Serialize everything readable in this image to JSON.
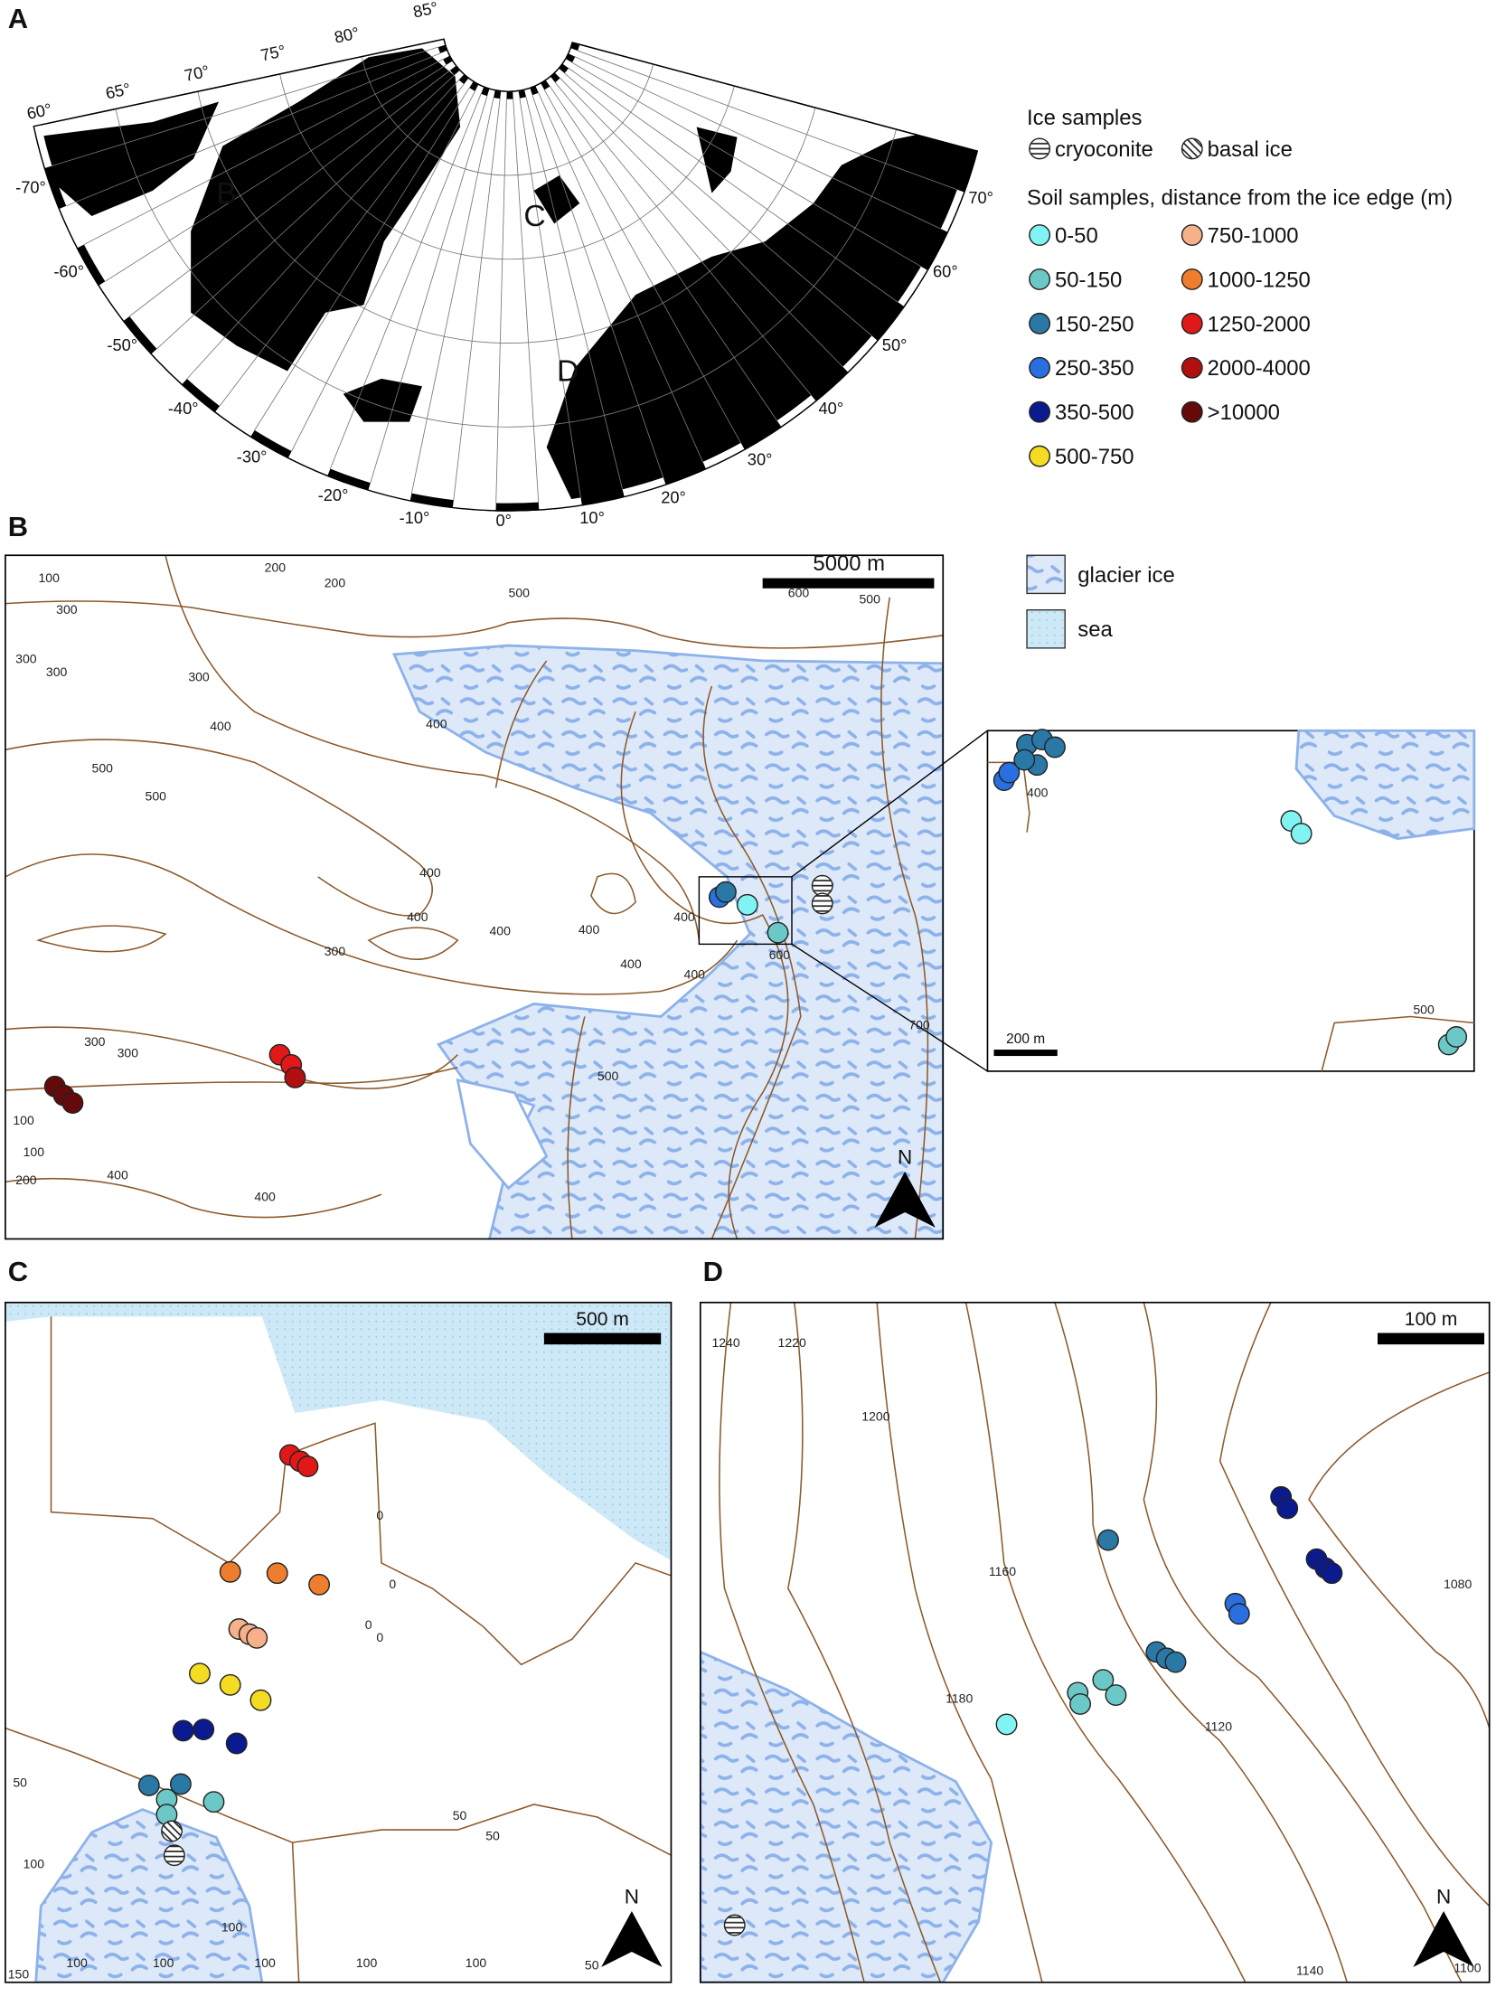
{
  "panel_labels": [
    "A",
    "B",
    "C",
    "D"
  ],
  "map_a": {
    "region_labels": [
      "B",
      "C",
      "D"
    ],
    "latitude_labels": [
      "60°",
      "65°",
      "70°",
      "75°",
      "80°",
      "85°"
    ],
    "longitude_labels": [
      "-70°",
      "-60°",
      "-50°",
      "-40°",
      "-30°",
      "-20°",
      "-10°",
      "0°",
      "10°",
      "20°",
      "30°",
      "40°",
      "50°",
      "60°",
      "70°"
    ]
  },
  "legend": {
    "ice_title": "Ice samples",
    "ice_types": [
      "cryoconite",
      "basal ice"
    ],
    "soil_title": "Soil samples, distance from the ice edge (m)",
    "soil_classes": [
      {
        "label": "0-50",
        "color": "#80f4f2"
      },
      {
        "label": "50-150",
        "color": "#6cc8c6"
      },
      {
        "label": "150-250",
        "color": "#2a78a6"
      },
      {
        "label": "250-350",
        "color": "#2a6fe0"
      },
      {
        "label": "350-500",
        "color": "#0b1a8e"
      },
      {
        "label": "500-750",
        "color": "#f4dc22"
      },
      {
        "label": "750-1000",
        "color": "#f6b08a"
      },
      {
        "label": "1000-1250",
        "color": "#ee7e2e"
      },
      {
        "label": "1250-2000",
        "color": "#e01818"
      },
      {
        "label": "2000-4000",
        "color": "#b01010"
      },
      {
        "label": ">10000",
        "color": "#640a0a"
      }
    ],
    "surfaces": [
      "glacier ice",
      "sea"
    ]
  },
  "map_b": {
    "scale_bar": "5000 m",
    "inset_scale_bar": "200 m",
    "north": "N",
    "contour_labels": [
      "100",
      "200",
      "200",
      "300",
      "300",
      "300",
      "300",
      "400",
      "400",
      "500",
      "500",
      "500",
      "400",
      "400",
      "400",
      "400",
      "300",
      "400",
      "400",
      "400",
      "600",
      "500",
      "600",
      "500",
      "700",
      "300",
      "300",
      "100",
      "100",
      "200",
      "400",
      "400"
    ],
    "inset_contour_labels": [
      "400",
      "500"
    ]
  },
  "map_c": {
    "scale_bar": "500 m",
    "north": "N",
    "contour_labels": [
      "0",
      "0",
      "0",
      "0",
      "50",
      "50",
      "50",
      "100",
      "150",
      "100",
      "100",
      "100",
      "100",
      "100",
      "100",
      "50"
    ]
  },
  "map_d": {
    "scale_bar": "100 m",
    "north": "N",
    "contour_labels": [
      "1240",
      "1220",
      "1200",
      "1160",
      "1180",
      "1120",
      "1080",
      "1140",
      "1100"
    ]
  }
}
